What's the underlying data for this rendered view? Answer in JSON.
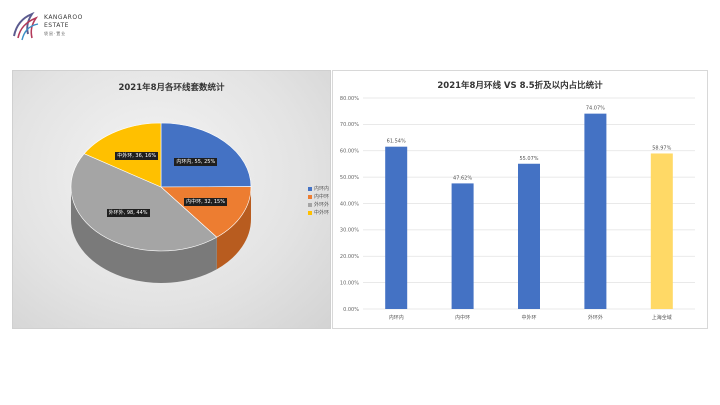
{
  "logo": {
    "brand": "KANGAROO",
    "brand2": "ESTATE",
    "sub": "袋鼠·置业"
  },
  "colors": {
    "blue": "#4472c4",
    "orange": "#ed7d31",
    "gray": "#a5a5a5",
    "yellow": "#ffc000",
    "bar_blue": "#4472c4",
    "bar_yellow": "#ffd966"
  },
  "chart_data": [
    {
      "type": "pie",
      "title": "2021年8月各环线套数统计",
      "slices": [
        {
          "name": "内环内",
          "label": "内环内, 55, 25%",
          "value": 55,
          "percent": 25
        },
        {
          "name": "内中环",
          "label": "内中环, 32, 15%",
          "value": 32,
          "percent": 15
        },
        {
          "name": "外环外",
          "label": "外环外, 98, 44%",
          "value": 98,
          "percent": 44
        },
        {
          "name": "中外环",
          "label": "中外环, 36, 16%",
          "value": 36,
          "percent": 16
        }
      ],
      "legend": [
        "内环内",
        "内中环",
        "外环外",
        "中外环"
      ],
      "legend_position": "right"
    },
    {
      "type": "bar",
      "title": "2021年8月环线 VS 8.5折及以内占比统计",
      "categories": [
        "内环内",
        "内中环",
        "中外环",
        "外环外",
        "上海全域"
      ],
      "values": [
        61.54,
        47.62,
        55.07,
        74.07,
        58.97
      ],
      "value_labels": [
        "61.54%",
        "47.62%",
        "55.07%",
        "74.07%",
        "58.97%"
      ],
      "y_ticks": [
        "0.00%",
        "10.00%",
        "20.00%",
        "30.00%",
        "40.00%",
        "50.00%",
        "60.00%",
        "70.00%",
        "80.00%"
      ],
      "ylim": [
        0,
        80
      ],
      "grid": true
    }
  ]
}
